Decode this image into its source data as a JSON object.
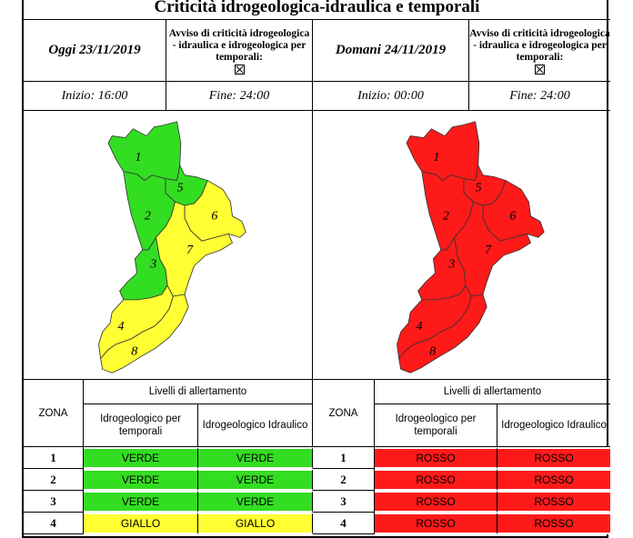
{
  "title": "Criticità idrogeologica-idraulica e temporali",
  "avviso_text": "Avviso di criticità idrogeologica - idraulica e idrogeologica per temporali:",
  "today": {
    "date": "Oggi 23/11/2019",
    "start": "Inizio: 16:00",
    "end": "Fine: 24:00"
  },
  "tomorrow": {
    "date": "Domani 24/11/2019",
    "start": "Inizio: 00:00",
    "end": "Fine: 24:00"
  },
  "zone_labels": [
    "1",
    "2",
    "3",
    "4",
    "5",
    "6",
    "7",
    "8"
  ],
  "zone_colors_today": {
    "1": "#33dd22",
    "2": "#33dd22",
    "3": "#33dd22",
    "5": "#33dd22",
    "4": "#ffff33",
    "6": "#ffff33",
    "7": "#ffff33",
    "8": "#ffff33"
  },
  "zone_color_tomorrow": "#ff1a1a",
  "table": {
    "zona_header": "ZONA",
    "livelli_header": "Livelli di allertamento",
    "col1": "Idrogeologico per temporali",
    "col2": "Idrogeologico Idraulico",
    "today_rows": [
      {
        "zona": "1",
        "v1": "VERDE",
        "v2": "VERDE",
        "color": "#33dd22"
      },
      {
        "zona": "2",
        "v1": "VERDE",
        "v2": "VERDE",
        "color": "#33dd22"
      },
      {
        "zona": "3",
        "v1": "VERDE",
        "v2": "VERDE",
        "color": "#33dd22"
      },
      {
        "zona": "4",
        "v1": "GIALLO",
        "v2": "GIALLO",
        "color": "#ffff33"
      }
    ],
    "tomorrow_rows": [
      {
        "zona": "1",
        "v1": "ROSSO",
        "v2": "ROSSO",
        "color": "#ff1a1a"
      },
      {
        "zona": "2",
        "v1": "ROSSO",
        "v2": "ROSSO",
        "color": "#ff1a1a"
      },
      {
        "zona": "3",
        "v1": "ROSSO",
        "v2": "ROSSO",
        "color": "#ff1a1a"
      },
      {
        "zona": "4",
        "v1": "ROSSO",
        "v2": "ROSSO",
        "color": "#ff1a1a"
      }
    ]
  }
}
